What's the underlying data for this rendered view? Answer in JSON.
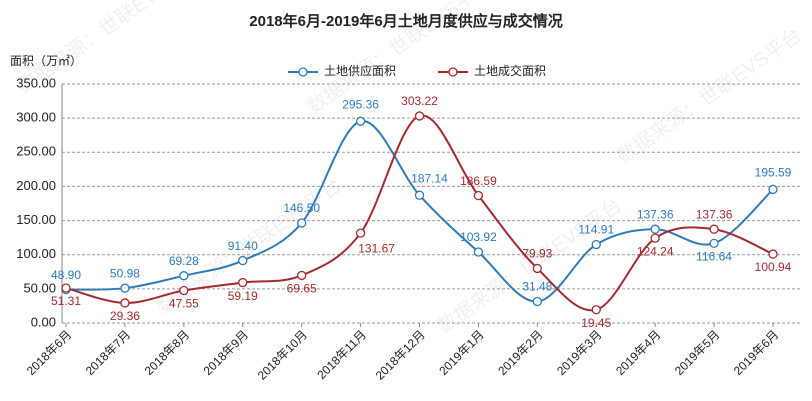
{
  "chart_data": {
    "type": "line",
    "title": "2018年6月-2019年6月土地月度供应与成交情况",
    "y_label": "面积（万㎡）",
    "watermark": "数据来源：世联EVS平台",
    "categories": [
      "2018年6月",
      "2018年7月",
      "2018年8月",
      "2018年9月",
      "2018年10月",
      "2018年11月",
      "2018年12月",
      "2019年1月",
      "2019年2月",
      "2019年3月",
      "2019年4月",
      "2019年5月",
      "2019年6月"
    ],
    "series": [
      {
        "name": "土地供应面积",
        "color": "#2e7bb8",
        "values": [
          48.9,
          50.98,
          69.28,
          91.4,
          146.5,
          295.36,
          187.14,
          103.92,
          31.48,
          114.91,
          137.36,
          116.64,
          195.59
        ],
        "value_labels": [
          "48.90",
          "50.98",
          "69.28",
          "91.40",
          "146.50",
          "295.36",
          "187.14",
          "103.92",
          "31.48",
          "114.91",
          "137.36",
          "116.64",
          "195.59"
        ]
      },
      {
        "name": "土地成交面积",
        "color": "#a52a2f",
        "values": [
          51.31,
          29.36,
          47.55,
          59.19,
          69.65,
          131.67,
          303.22,
          186.59,
          79.93,
          19.45,
          124.24,
          137.36,
          100.94
        ],
        "value_labels": [
          "51.31",
          "29.36",
          "47.55",
          "59.19",
          "69.65",
          "131.67",
          "303.22",
          "186.59",
          "79.93",
          "19.45",
          "124.24",
          "137.36",
          "100.94"
        ]
      }
    ],
    "ylim": [
      0,
      350
    ],
    "yticks": [
      {
        "value": 0,
        "label": "0.00"
      },
      {
        "value": 50,
        "label": "50.00"
      },
      {
        "value": 100,
        "label": "100.00"
      },
      {
        "value": 150,
        "label": "150.00"
      },
      {
        "value": 200,
        "label": "200.00"
      },
      {
        "value": 250,
        "label": "250.00"
      },
      {
        "value": 300,
        "label": "300.00"
      },
      {
        "value": 350,
        "label": "350.00"
      }
    ],
    "grid": true,
    "smooth": true,
    "legend": "top"
  }
}
